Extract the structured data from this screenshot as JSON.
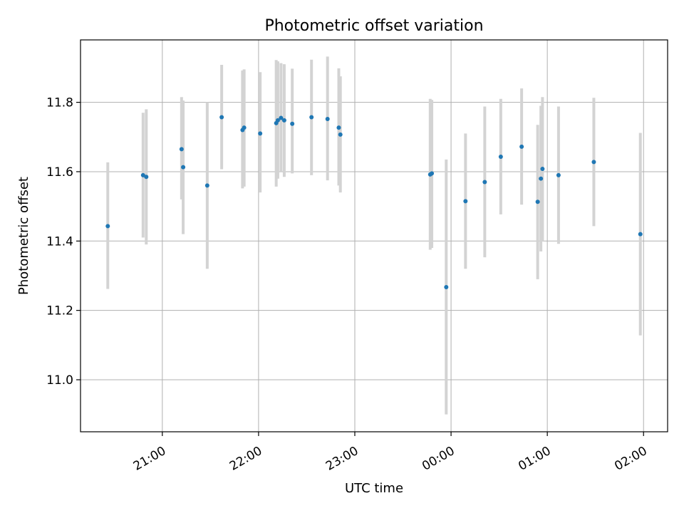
{
  "chart_data": {
    "type": "scatter",
    "title": "Photometric offset variation",
    "xlabel": "UTC time",
    "ylabel": "Photometric offset",
    "x_unit": "HH:MM UTC",
    "x_range": [
      "20:09",
      "02:15"
    ],
    "ylim": [
      10.85,
      11.98
    ],
    "grid": true,
    "x_ticks": [
      "21:00",
      "22:00",
      "23:00",
      "00:00",
      "01:00",
      "02:00"
    ],
    "y_ticks": [
      "11.0",
      "11.2",
      "11.4",
      "11.6",
      "11.8"
    ],
    "point_color": "#1f77b4",
    "errorbar_color": "#d3d3d3",
    "points": [
      {
        "x": "20:26",
        "y": 11.443,
        "lo": 11.262,
        "hi": 11.627
      },
      {
        "x": "20:48",
        "y": 11.59,
        "lo": 11.41,
        "hi": 11.77
      },
      {
        "x": "20:50",
        "y": 11.585,
        "lo": 11.39,
        "hi": 11.78
      },
      {
        "x": "21:12",
        "y": 11.665,
        "lo": 11.52,
        "hi": 11.815
      },
      {
        "x": "21:13",
        "y": 11.613,
        "lo": 11.42,
        "hi": 11.805
      },
      {
        "x": "21:28",
        "y": 11.56,
        "lo": 11.32,
        "hi": 11.8
      },
      {
        "x": "21:37",
        "y": 11.757,
        "lo": 11.607,
        "hi": 11.908
      },
      {
        "x": "21:50",
        "y": 11.72,
        "lo": 11.552,
        "hi": 11.892
      },
      {
        "x": "21:51",
        "y": 11.727,
        "lo": 11.557,
        "hi": 11.895
      },
      {
        "x": "22:01",
        "y": 11.71,
        "lo": 11.54,
        "hi": 11.887
      },
      {
        "x": "22:11",
        "y": 11.74,
        "lo": 11.557,
        "hi": 11.922
      },
      {
        "x": "22:12",
        "y": 11.748,
        "lo": 11.58,
        "hi": 11.918
      },
      {
        "x": "22:14",
        "y": 11.755,
        "lo": 11.6,
        "hi": 11.913
      },
      {
        "x": "22:16",
        "y": 11.748,
        "lo": 11.585,
        "hi": 11.91
      },
      {
        "x": "22:21",
        "y": 11.738,
        "lo": 11.595,
        "hi": 11.897
      },
      {
        "x": "22:33",
        "y": 11.757,
        "lo": 11.59,
        "hi": 11.923
      },
      {
        "x": "22:43",
        "y": 11.752,
        "lo": 11.575,
        "hi": 11.932
      },
      {
        "x": "22:50",
        "y": 11.727,
        "lo": 11.56,
        "hi": 11.898
      },
      {
        "x": "22:51",
        "y": 11.707,
        "lo": 11.54,
        "hi": 11.875
      },
      {
        "x": "23:47",
        "y": 11.592,
        "lo": 11.375,
        "hi": 11.81
      },
      {
        "x": "23:48",
        "y": 11.595,
        "lo": 11.38,
        "hi": 11.807
      },
      {
        "x": "23:57",
        "y": 11.267,
        "lo": 10.9,
        "hi": 11.635
      },
      {
        "x": "00:09",
        "y": 11.515,
        "lo": 11.32,
        "hi": 11.71
      },
      {
        "x": "00:21",
        "y": 11.57,
        "lo": 11.353,
        "hi": 11.788
      },
      {
        "x": "00:31",
        "y": 11.643,
        "lo": 11.477,
        "hi": 11.81
      },
      {
        "x": "00:44",
        "y": 11.672,
        "lo": 11.505,
        "hi": 11.84
      },
      {
        "x": "00:54",
        "y": 11.513,
        "lo": 11.29,
        "hi": 11.735
      },
      {
        "x": "00:56",
        "y": 11.58,
        "lo": 11.37,
        "hi": 11.79
      },
      {
        "x": "00:57",
        "y": 11.608,
        "lo": 11.4,
        "hi": 11.815
      },
      {
        "x": "01:07",
        "y": 11.59,
        "lo": 11.392,
        "hi": 11.788
      },
      {
        "x": "01:29",
        "y": 11.628,
        "lo": 11.443,
        "hi": 11.813
      },
      {
        "x": "01:58",
        "y": 11.42,
        "lo": 11.128,
        "hi": 11.712
      }
    ]
  }
}
